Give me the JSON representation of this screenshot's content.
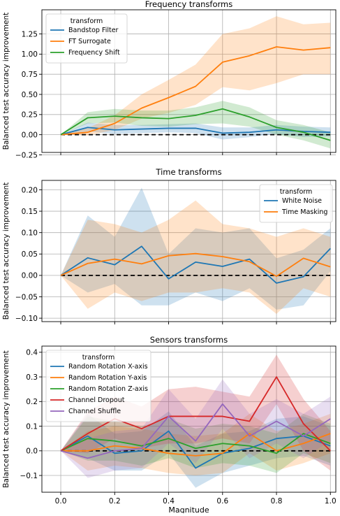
{
  "figure": {
    "ylabel": "Balanced test accuracy improvement",
    "xlabel": "Magnitude",
    "x_ticks": [
      "0.0",
      "0.2",
      "0.4",
      "0.6",
      "0.8",
      "1.0"
    ]
  },
  "chart_data": [
    {
      "type": "line",
      "title": "Frequency transforms",
      "ylabel": "Balanced test accuracy improvement",
      "xlabel": "",
      "xlim": [
        -0.07,
        1.02
      ],
      "ylim": [
        -0.22,
        1.55
      ],
      "yticks": [
        "−0.25",
        "0.00",
        "0.25",
        "0.50",
        "0.75",
        "1.00",
        "1.25"
      ],
      "yticks_values": [
        -0.25,
        0,
        0.25,
        0.5,
        0.75,
        1.0,
        1.25
      ],
      "grid": true,
      "baseline": 0,
      "legend": {
        "title": "transform",
        "placement": "top-left"
      },
      "x": [
        0.0,
        0.1,
        0.2,
        0.3,
        0.4,
        0.5,
        0.6,
        0.7,
        0.8,
        0.9,
        1.0
      ],
      "series": [
        {
          "name": "Bandstop Filter",
          "color": "#1f77b4",
          "values": [
            0,
            0.09,
            0.06,
            0.07,
            0.08,
            0.08,
            0.02,
            0.03,
            0.06,
            0.04,
            0.03
          ],
          "lower": [
            0,
            0.04,
            0.01,
            0.02,
            0.03,
            0.02,
            -0.06,
            -0.03,
            0.01,
            -0.03,
            -0.02
          ],
          "upper": [
            0,
            0.15,
            0.12,
            0.12,
            0.13,
            0.14,
            0.09,
            0.09,
            0.12,
            0.1,
            0.09
          ]
        },
        {
          "name": "FT Surrogate",
          "color": "#ff7f0e",
          "values": [
            0,
            0.03,
            0.14,
            0.33,
            0.46,
            0.6,
            0.9,
            0.98,
            1.09,
            1.05,
            1.08
          ],
          "lower": [
            0,
            -0.01,
            0.06,
            0.2,
            0.27,
            0.37,
            0.59,
            0.55,
            0.64,
            0.75,
            0.75
          ],
          "upper": [
            0,
            0.08,
            0.24,
            0.5,
            0.68,
            0.87,
            1.25,
            1.32,
            1.47,
            1.37,
            1.39
          ]
        },
        {
          "name": "Frequency Shift",
          "color": "#2ca02c",
          "values": [
            0,
            0.21,
            0.23,
            0.21,
            0.2,
            0.24,
            0.32,
            0.22,
            0.09,
            0.03,
            -0.07
          ],
          "lower": [
            0,
            0.14,
            0.15,
            0.11,
            0.1,
            0.13,
            0.14,
            0.1,
            0.0,
            -0.07,
            -0.17
          ],
          "upper": [
            0,
            0.28,
            0.32,
            0.3,
            0.3,
            0.34,
            0.42,
            0.34,
            0.18,
            0.12,
            0.03
          ]
        }
      ]
    },
    {
      "type": "line",
      "title": "Time transforms",
      "ylabel": "Balanced test accuracy improvement",
      "xlabel": "",
      "xlim": [
        -0.07,
        1.02
      ],
      "ylim": [
        -0.108,
        0.222
      ],
      "yticks": [
        "−0.10",
        "−0.05",
        "0.00",
        "0.05",
        "0.10",
        "0.15",
        "0.20"
      ],
      "yticks_values": [
        -0.1,
        -0.05,
        0,
        0.05,
        0.1,
        0.15,
        0.2
      ],
      "grid": true,
      "baseline": 0,
      "legend": {
        "title": "transform",
        "placement": "top-right"
      },
      "x": [
        0.0,
        0.1,
        0.2,
        0.3,
        0.4,
        0.5,
        0.6,
        0.7,
        0.8,
        0.9,
        1.0
      ],
      "series": [
        {
          "name": "White Noise",
          "color": "#1f77b4",
          "values": [
            0,
            0.041,
            0.025,
            0.068,
            -0.008,
            0.031,
            0.021,
            0.038,
            -0.018,
            -0.003,
            0.063
          ],
          "lower": [
            0,
            -0.04,
            -0.02,
            -0.07,
            -0.07,
            -0.04,
            -0.06,
            -0.03,
            -0.08,
            -0.07,
            0.01
          ],
          "upper": [
            0,
            0.14,
            0.09,
            0.205,
            0.05,
            0.11,
            0.1,
            0.11,
            0.04,
            0.06,
            0.11
          ]
        },
        {
          "name": "Time Masking",
          "color": "#ff7f0e",
          "values": [
            0,
            0.028,
            0.038,
            0.027,
            0.046,
            0.051,
            0.044,
            0.032,
            -0.002,
            0.04,
            0.02
          ],
          "lower": [
            0,
            -0.078,
            -0.04,
            -0.06,
            -0.04,
            -0.04,
            -0.03,
            -0.04,
            -0.09,
            -0.03,
            -0.05
          ],
          "upper": [
            0,
            0.13,
            0.12,
            0.1,
            0.13,
            0.175,
            0.12,
            0.11,
            0.09,
            0.11,
            0.09
          ]
        }
      ]
    },
    {
      "type": "line",
      "title": "Sensors transforms",
      "ylabel": "Balanced test accuracy improvement",
      "xlabel": "Magnitude",
      "xlim": [
        -0.07,
        1.02
      ],
      "ylim": [
        -0.168,
        0.425
      ],
      "yticks": [
        "−0.1",
        "0.0",
        "0.1",
        "0.2",
        "0.3",
        "0.4"
      ],
      "yticks_values": [
        -0.1,
        0,
        0.1,
        0.2,
        0.3,
        0.4
      ],
      "grid": true,
      "baseline": 0,
      "legend": {
        "title": "transform",
        "placement": "top-left"
      },
      "x": [
        0.0,
        0.1,
        0.2,
        0.3,
        0.4,
        0.5,
        0.6,
        0.7,
        0.8,
        0.9,
        1.0
      ],
      "series": [
        {
          "name": "Random Rotation X-axis",
          "color": "#1f77b4",
          "values": [
            0,
            0.06,
            -0.01,
            0.0,
            0.08,
            -0.07,
            -0.01,
            0.01,
            0.05,
            0.06,
            0.02
          ],
          "lower": [
            0,
            -0.03,
            -0.08,
            -0.08,
            -0.01,
            -0.15,
            -0.09,
            -0.06,
            -0.03,
            -0.02,
            -0.06
          ],
          "upper": [
            0,
            0.15,
            0.07,
            0.08,
            0.16,
            0.02,
            0.07,
            0.08,
            0.13,
            0.14,
            0.1
          ]
        },
        {
          "name": "Random Rotation Y-axis",
          "color": "#ff7f0e",
          "values": [
            0,
            0.0,
            0.02,
            0.01,
            -0.01,
            -0.02,
            -0.01,
            0.07,
            0.0,
            0.03,
            0.07
          ],
          "lower": [
            0,
            -0.08,
            -0.06,
            -0.07,
            -0.09,
            -0.1,
            -0.09,
            -0.01,
            -0.08,
            -0.05,
            -0.01
          ],
          "upper": [
            0,
            0.08,
            0.1,
            0.09,
            0.07,
            0.06,
            0.07,
            0.15,
            0.08,
            0.11,
            0.15
          ]
        },
        {
          "name": "Random Rotation Z-axis",
          "color": "#2ca02c",
          "values": [
            0,
            0.05,
            0.04,
            0.02,
            0.05,
            0.01,
            0.03,
            0.02,
            -0.01,
            0.07,
            0.03
          ],
          "lower": [
            0,
            -0.04,
            -0.04,
            -0.06,
            -0.03,
            -0.07,
            -0.05,
            -0.06,
            -0.09,
            -0.01,
            -0.05
          ],
          "upper": [
            0,
            0.14,
            0.12,
            0.1,
            0.13,
            0.09,
            0.11,
            0.1,
            0.07,
            0.15,
            0.11
          ]
        },
        {
          "name": "Channel Dropout",
          "color": "#d62728",
          "values": [
            0,
            0.07,
            0.13,
            0.09,
            0.14,
            0.14,
            0.14,
            0.12,
            0.3,
            0.11,
            0.0
          ],
          "lower": [
            0,
            -0.01,
            0.05,
            0.01,
            0.03,
            0.03,
            0.05,
            0.03,
            0.19,
            0.0,
            -0.08
          ],
          "upper": [
            0,
            0.16,
            0.22,
            0.18,
            0.25,
            0.26,
            0.24,
            0.22,
            0.39,
            0.21,
            0.08
          ]
        },
        {
          "name": "Channel Shuffle",
          "color": "#9467bd",
          "values": [
            0,
            -0.03,
            0.0,
            0.01,
            0.14,
            0.04,
            0.19,
            0.06,
            0.12,
            0.06,
            0.13
          ],
          "lower": [
            0,
            -0.11,
            -0.08,
            -0.07,
            0.03,
            -0.05,
            0.09,
            -0.03,
            0.03,
            -0.03,
            0.04
          ],
          "upper": [
            0,
            0.05,
            0.08,
            0.09,
            0.25,
            0.13,
            0.29,
            0.15,
            0.21,
            0.15,
            0.22
          ]
        }
      ]
    }
  ]
}
